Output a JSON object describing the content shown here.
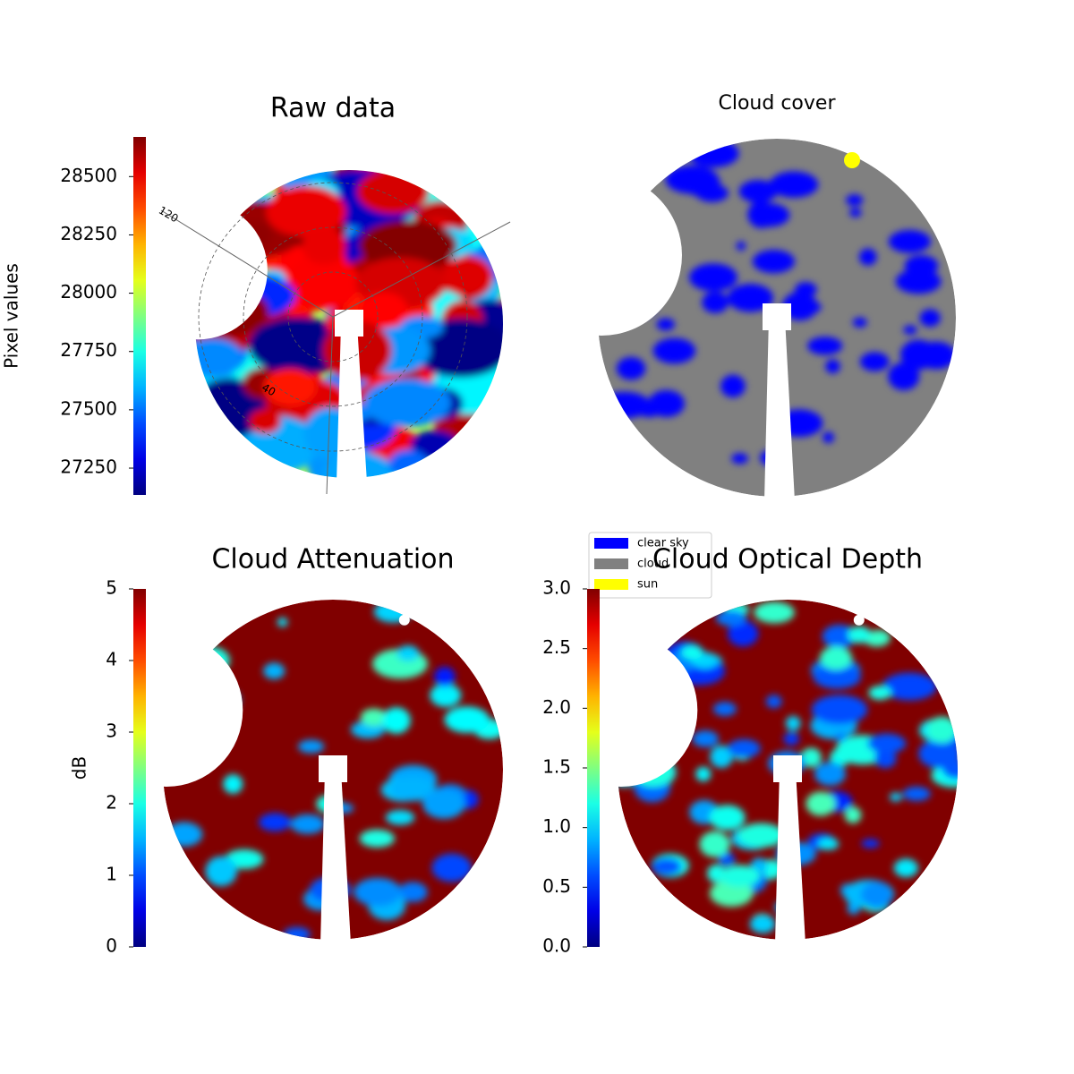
{
  "chart_data": [
    {
      "type": "image",
      "title": "Raw data",
      "colormap": "jet",
      "colorbar_label": "Pixel values",
      "clim": [
        27135,
        28670
      ],
      "cticks": [
        27250,
        27500,
        27750,
        28000,
        28250,
        28500
      ],
      "polar_labels": [
        "120",
        "40"
      ]
    },
    {
      "type": "image",
      "title": "Cloud cover",
      "legend": [
        {
          "name": "clear sky",
          "color": "#0000ff"
        },
        {
          "name": "cloud",
          "color": "#808080"
        },
        {
          "name": "sun",
          "color": "#ffff00"
        }
      ]
    },
    {
      "type": "image",
      "title": "Cloud Attenuation",
      "colormap": "jet",
      "colorbar_label": "dB",
      "clim": [
        0,
        5
      ],
      "cticks": [
        0,
        1,
        2,
        3,
        4,
        5
      ]
    },
    {
      "type": "image",
      "title": "Cloud Optical Depth",
      "colormap": "jet",
      "clim": [
        0,
        3
      ],
      "cticks": [
        {
          "value": 0,
          "label": "0.0"
        },
        {
          "value": 0.5,
          "label": "0.5"
        },
        {
          "value": 1,
          "label": "1.0"
        },
        {
          "value": 1.5,
          "label": "1.5"
        },
        {
          "value": 2,
          "label": "2.0"
        },
        {
          "value": 2.5,
          "label": "2.5"
        },
        {
          "value": 3,
          "label": "3.0"
        }
      ]
    }
  ]
}
